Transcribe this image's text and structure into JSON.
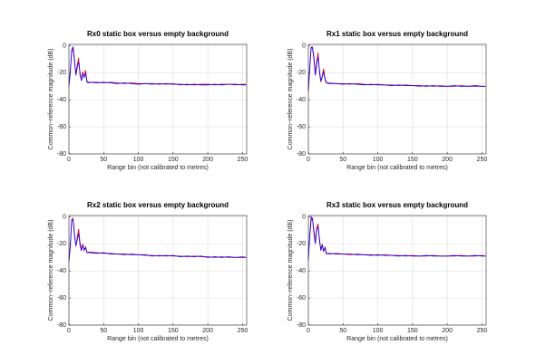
{
  "chart_data": [
    {
      "type": "line",
      "title": "Rx0 static box versus empty background",
      "xlabel": "Range bin (not calibrated to metres)",
      "ylabel": "Common−reference magnitude (dB)",
      "x": [
        0,
        2,
        4,
        6,
        8,
        10,
        12,
        14,
        16,
        18,
        20,
        22,
        24,
        26,
        28,
        30,
        40,
        50,
        60,
        70,
        80,
        90,
        100,
        110,
        120,
        130,
        140,
        150,
        160,
        170,
        180,
        190,
        200,
        210,
        220,
        230,
        240,
        250,
        255
      ],
      "series": [
        {
          "color": "#ff0000",
          "values": [
            -28,
            -18,
            -5,
            -2,
            -12,
            -20,
            -14,
            -9,
            -22,
            -25,
            -19,
            -24,
            -18,
            -26,
            -27,
            -27,
            -27,
            -27.5,
            -27,
            -27.5,
            -28,
            -27.5,
            -28,
            -28,
            -28.5,
            -28,
            -28.5,
            -28,
            -29,
            -28.5,
            -29,
            -28.5,
            -28.5,
            -29,
            -28.5,
            -28.5,
            -29,
            -28.5,
            -28.5
          ]
        },
        {
          "color": "#0000ff",
          "values": [
            -30,
            -20,
            -3,
            -1,
            -10,
            -22,
            -16,
            -12,
            -20,
            -26,
            -21,
            -23,
            -20,
            -27,
            -27.5,
            -27,
            -27.5,
            -27,
            -27.5,
            -28,
            -27.5,
            -28,
            -28.5,
            -28,
            -28,
            -28.5,
            -28,
            -28.5,
            -28.5,
            -29,
            -28.5,
            -29,
            -29,
            -28.5,
            -29,
            -28.5,
            -28.5,
            -29,
            -29
          ]
        }
      ],
      "xlim": [
        0,
        256
      ],
      "ylim": [
        -80,
        1
      ],
      "xticks": [
        0,
        50,
        100,
        150,
        200,
        250
      ],
      "yticks": [
        -80,
        -60,
        -40,
        -20,
        0
      ],
      "grid": true
    },
    {
      "type": "line",
      "title": "Rx1 static box versus empty background",
      "xlabel": "Range bin (not calibrated to metres)",
      "ylabel": "Common−reference magnitude (dB)",
      "x": [
        0,
        2,
        4,
        6,
        8,
        10,
        12,
        14,
        16,
        18,
        20,
        22,
        24,
        26,
        28,
        30,
        40,
        50,
        60,
        70,
        80,
        90,
        100,
        110,
        120,
        130,
        140,
        150,
        160,
        170,
        180,
        190,
        200,
        210,
        220,
        230,
        240,
        250,
        255
      ],
      "series": [
        {
          "color": "#ff0000",
          "values": [
            -34,
            -18,
            -2,
            -1,
            -8,
            -20,
            -12,
            -5,
            -20,
            -27,
            -22,
            -17,
            -24,
            -27,
            -28,
            -27.5,
            -28,
            -28,
            -28.5,
            -28,
            -28.5,
            -29,
            -28.5,
            -29,
            -29,
            -29.5,
            -29,
            -29.5,
            -30,
            -29.5,
            -30,
            -29.5,
            -30,
            -30,
            -29.5,
            -30,
            -30,
            -30,
            -30
          ]
        },
        {
          "color": "#0000ff",
          "values": [
            -32,
            -16,
            -1,
            -2,
            -10,
            -22,
            -14,
            -8,
            -18,
            -26,
            -23,
            -19,
            -25,
            -27.5,
            -27.5,
            -28,
            -28,
            -28.5,
            -28,
            -28.5,
            -29,
            -28.5,
            -29,
            -29,
            -29.5,
            -29,
            -29.5,
            -29.5,
            -29.5,
            -30,
            -29.5,
            -30,
            -30,
            -29.5,
            -30,
            -30,
            -29.5,
            -30,
            -30
          ]
        }
      ],
      "xlim": [
        0,
        256
      ],
      "ylim": [
        -80,
        1
      ],
      "xticks": [
        0,
        50,
        100,
        150,
        200,
        250
      ],
      "yticks": [
        -80,
        -60,
        -40,
        -20,
        0
      ],
      "grid": true
    },
    {
      "type": "line",
      "title": "Rx2 static box versus empty background",
      "xlabel": "Range bin (not calibrated to metres)",
      "ylabel": "Common−reference magnitude (dB)",
      "x": [
        0,
        2,
        4,
        6,
        8,
        10,
        12,
        14,
        16,
        18,
        20,
        22,
        24,
        26,
        28,
        30,
        40,
        50,
        60,
        70,
        80,
        90,
        100,
        110,
        120,
        130,
        140,
        150,
        160,
        170,
        180,
        190,
        200,
        210,
        220,
        230,
        240,
        250,
        255
      ],
      "series": [
        {
          "color": "#ff0000",
          "values": [
            -31,
            -20,
            -2,
            -1,
            -12,
            -22,
            -15,
            -9,
            -19,
            -24,
            -20,
            -25,
            -22,
            -26,
            -26.5,
            -26,
            -26.5,
            -27,
            -27,
            -27.5,
            -28,
            -27.5,
            -28,
            -28.5,
            -28.5,
            -29,
            -28.5,
            -29,
            -29,
            -29.5,
            -29,
            -29.5,
            -29.5,
            -30,
            -29.5,
            -30,
            -30,
            -29.5,
            -30
          ]
        },
        {
          "color": "#0000ff",
          "values": [
            -33,
            -22,
            -3,
            -2,
            -14,
            -21,
            -17,
            -12,
            -21,
            -25,
            -21,
            -24,
            -23,
            -26.5,
            -26,
            -26.5,
            -27,
            -26.5,
            -27.5,
            -27.5,
            -27.5,
            -28,
            -28,
            -28,
            -29,
            -28.5,
            -29,
            -28.5,
            -29.5,
            -29,
            -29.5,
            -29,
            -30,
            -29.5,
            -30,
            -29.5,
            -30,
            -30,
            -30
          ]
        }
      ],
      "xlim": [
        0,
        256
      ],
      "ylim": [
        -80,
        1
      ],
      "xticks": [
        0,
        50,
        100,
        150,
        200,
        250
      ],
      "yticks": [
        -80,
        -60,
        -40,
        -20,
        0
      ],
      "grid": true
    },
    {
      "type": "line",
      "title": "Rx3 static box versus empty background",
      "xlabel": "Range bin (not calibrated to metres)",
      "ylabel": "Common−reference magnitude (dB)",
      "x": [
        0,
        2,
        4,
        6,
        8,
        10,
        12,
        14,
        16,
        18,
        20,
        22,
        24,
        26,
        28,
        30,
        40,
        50,
        60,
        70,
        80,
        90,
        100,
        110,
        120,
        130,
        140,
        150,
        160,
        170,
        180,
        190,
        200,
        210,
        220,
        230,
        240,
        250,
        255
      ],
      "series": [
        {
          "color": "#ff0000",
          "values": [
            -30,
            -15,
            -3,
            -1,
            -10,
            -18,
            -8,
            -5,
            -18,
            -24,
            -20,
            -26,
            -22,
            -27,
            -27,
            -27.5,
            -27,
            -27.5,
            -28,
            -27.5,
            -28,
            -28,
            -28.5,
            -28,
            -28.5,
            -28.5,
            -29,
            -28.5,
            -29,
            -29,
            -28.5,
            -29,
            -29,
            -29,
            -28.5,
            -29,
            -29,
            -28.5,
            -29
          ]
        },
        {
          "color": "#0000ff",
          "values": [
            -32,
            -13,
            0,
            -2,
            -12,
            -20,
            -10,
            -7,
            -16,
            -25,
            -21,
            -25,
            -23,
            -27.5,
            -27,
            -27,
            -27.5,
            -27.5,
            -27.5,
            -28,
            -28,
            -28.5,
            -28,
            -28.5,
            -28.5,
            -29,
            -28.5,
            -29,
            -29,
            -28.5,
            -29,
            -29,
            -29,
            -28.5,
            -29,
            -29,
            -28.5,
            -29,
            -29
          ]
        }
      ],
      "xlim": [
        0,
        256
      ],
      "ylim": [
        -80,
        1
      ],
      "xticks": [
        0,
        50,
        100,
        150,
        200,
        250
      ],
      "yticks": [
        -80,
        -60,
        -40,
        -20,
        0
      ],
      "grid": true
    }
  ]
}
